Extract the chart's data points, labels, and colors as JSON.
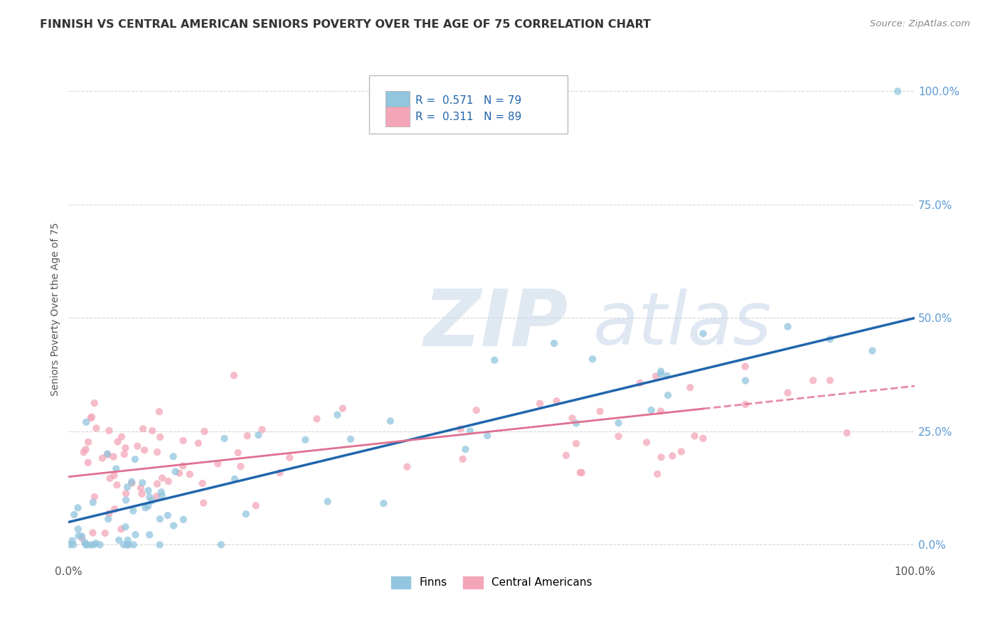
{
  "title": "FINNISH VS CENTRAL AMERICAN SENIORS POVERTY OVER THE AGE OF 75 CORRELATION CHART",
  "source": "Source: ZipAtlas.com",
  "ylabel": "Seniors Poverty Over the Age of 75",
  "xlim": [
    0,
    1.0
  ],
  "ylim": [
    -0.04,
    1.08
  ],
  "legend_R_finns": "0.571",
  "legend_N_finns": "79",
  "legend_R_central": "0.311",
  "legend_N_central": "89",
  "finns_color": "#92c5de",
  "central_color": "#f4a6b8",
  "trend_finns_color": "#2166ac",
  "trend_central_color": "#e07090",
  "watermark_zip_color": "#c8d8e8",
  "watermark_atlas_color": "#b8cce4",
  "background_color": "#ffffff",
  "grid_color": "#cccccc",
  "title_color": "#333333",
  "source_color": "#888888",
  "axis_label_color": "#555555",
  "tick_color": "#5b9bd5",
  "legend_text_color": "#333333",
  "legend_value_color": "#2166ac"
}
